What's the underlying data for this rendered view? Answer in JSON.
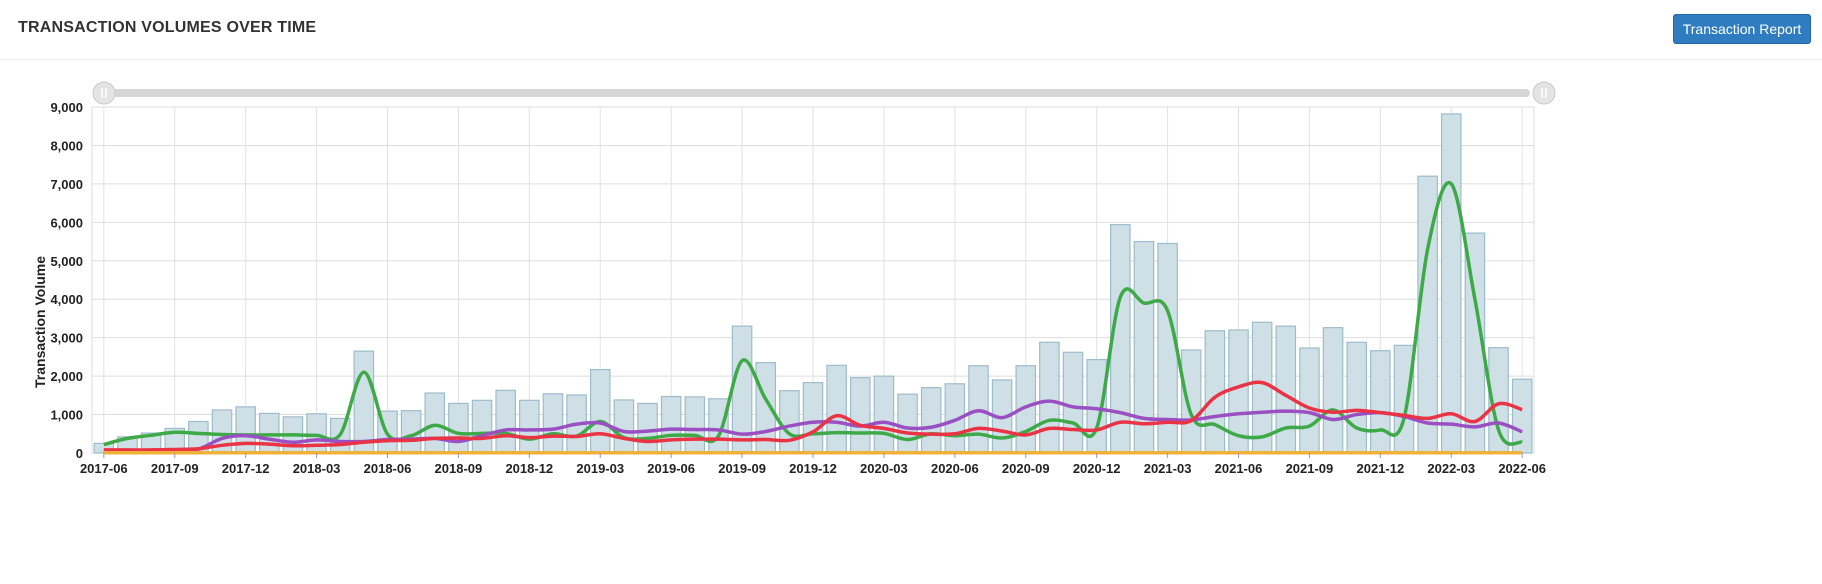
{
  "header": {
    "title": "TRANSACTION VOLUMES OVER TIME",
    "report_button": "Transaction Report"
  },
  "colors": {
    "bars_fill": "#cfdfe6",
    "bars_stroke": "#9dbccb",
    "green": "#3daa47",
    "purple": "#9a4fc2",
    "red": "#ea3344",
    "orange": "#f0b13a",
    "range_slider": "#d6d6d6"
  },
  "chart_data": {
    "type": "bar",
    "ylabel": "Transaction Volume",
    "xlabel": "",
    "ylim": [
      0,
      9000
    ],
    "y_ticks": [
      "0",
      "1,000",
      "2,000",
      "3,000",
      "4,000",
      "5,000",
      "6,000",
      "7,000",
      "8,000",
      "9,000"
    ],
    "x_tick_labels": [
      "2017-06",
      "2017-09",
      "2017-12",
      "2018-03",
      "2018-06",
      "2018-09",
      "2018-12",
      "2019-03",
      "2019-06",
      "2019-09",
      "2019-12",
      "2020-03",
      "2020-06",
      "2020-09",
      "2020-12",
      "2021-03",
      "2021-06",
      "2021-09",
      "2021-12",
      "2022-03",
      "2022-06"
    ],
    "grid": true,
    "categories": [
      "2017-06",
      "2017-07",
      "2017-08",
      "2017-09",
      "2017-10",
      "2017-11",
      "2017-12",
      "2018-01",
      "2018-02",
      "2018-03",
      "2018-04",
      "2018-05",
      "2018-06",
      "2018-07",
      "2018-08",
      "2018-09",
      "2018-10",
      "2018-11",
      "2018-12",
      "2019-01",
      "2019-02",
      "2019-03",
      "2019-04",
      "2019-05",
      "2019-06",
      "2019-07",
      "2019-08",
      "2019-09",
      "2019-10",
      "2019-11",
      "2019-12",
      "2020-01",
      "2020-02",
      "2020-03",
      "2020-04",
      "2020-05",
      "2020-06",
      "2020-07",
      "2020-08",
      "2020-09",
      "2020-10",
      "2020-11",
      "2020-12",
      "2021-01",
      "2021-02",
      "2021-03",
      "2021-04",
      "2021-05",
      "2021-06",
      "2021-07",
      "2021-08",
      "2021-09",
      "2021-10",
      "2021-11",
      "2021-12",
      "2022-01",
      "2022-02",
      "2022-03",
      "2022-04",
      "2022-05",
      "2022-06"
    ],
    "series": [
      {
        "kind": "bar",
        "color": "#cfdfe6",
        "values": [
          250,
          420,
          520,
          640,
          820,
          1120,
          1200,
          1030,
          940,
          1020,
          900,
          2650,
          1090,
          1100,
          1560,
          1290,
          1370,
          1630,
          1370,
          1540,
          1510,
          2170,
          1380,
          1290,
          1470,
          1460,
          1410,
          3300,
          2350,
          1620,
          1830,
          2280,
          1960,
          2000,
          1530,
          1700,
          1800,
          2270,
          1900,
          2270,
          2880,
          2620,
          2430,
          5940,
          5500,
          5450,
          2680,
          3180,
          3200,
          3400,
          3300,
          2730,
          3260,
          2880,
          2660,
          2800,
          7200,
          8820,
          5720,
          2740,
          1920
        ]
      },
      {
        "kind": "line",
        "color": "#3daa47",
        "values": [
          220,
          380,
          460,
          540,
          510,
          480,
          470,
          470,
          470,
          460,
          480,
          2100,
          490,
          450,
          720,
          510,
          510,
          510,
          360,
          500,
          440,
          820,
          400,
          380,
          460,
          460,
          440,
          2400,
          1400,
          500,
          500,
          530,
          520,
          510,
          350,
          500,
          450,
          490,
          390,
          560,
          850,
          780,
          650,
          4050,
          3900,
          3700,
          1000,
          740,
          450,
          420,
          650,
          700,
          1120,
          650,
          600,
          900,
          5300,
          7000,
          4000,
          600,
          280
        ]
      },
      {
        "kind": "line",
        "color": "#9a4fc2",
        "values": [
          60,
          60,
          60,
          70,
          100,
          380,
          450,
          360,
          280,
          340,
          300,
          300,
          350,
          360,
          380,
          300,
          450,
          600,
          600,
          620,
          750,
          780,
          560,
          570,
          620,
          610,
          600,
          490,
          560,
          700,
          800,
          800,
          700,
          800,
          650,
          670,
          850,
          1100,
          920,
          1200,
          1350,
          1200,
          1150,
          1050,
          900,
          870,
          860,
          950,
          1020,
          1060,
          1090,
          1050,
          870,
          1000,
          1050,
          950,
          780,
          750,
          680,
          780,
          550
        ]
      },
      {
        "kind": "line",
        "color": "#ea3344",
        "values": [
          80,
          80,
          80,
          90,
          110,
          200,
          250,
          230,
          190,
          200,
          220,
          280,
          320,
          330,
          380,
          390,
          380,
          450,
          400,
          440,
          430,
          500,
          380,
          300,
          340,
          360,
          360,
          340,
          350,
          330,
          550,
          970,
          720,
          640,
          520,
          490,
          500,
          640,
          570,
          470,
          640,
          610,
          600,
          800,
          760,
          800,
          840,
          1450,
          1720,
          1830,
          1500,
          1170,
          1060,
          1110,
          1050,
          980,
          900,
          1020,
          820,
          1280,
          1130
        ]
      },
      {
        "kind": "line",
        "color": "#f0b13a",
        "values": [
          5,
          5,
          5,
          5,
          5,
          5,
          5,
          5,
          5,
          5,
          5,
          5,
          5,
          5,
          5,
          5,
          5,
          5,
          5,
          5,
          5,
          5,
          5,
          5,
          5,
          5,
          5,
          5,
          5,
          5,
          5,
          5,
          5,
          5,
          5,
          5,
          5,
          5,
          5,
          5,
          5,
          5,
          5,
          5,
          5,
          5,
          5,
          5,
          5,
          5,
          5,
          5,
          5,
          5,
          5,
          5,
          5,
          5,
          5,
          5,
          5
        ]
      }
    ]
  }
}
